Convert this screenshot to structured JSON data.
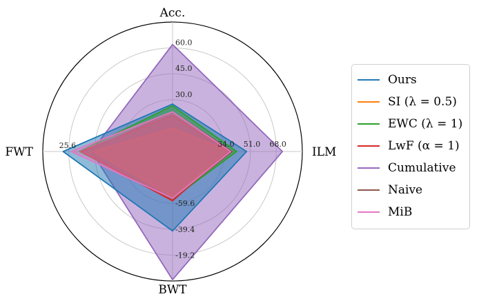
{
  "chart_data": {
    "type": "radar",
    "axes": [
      {
        "name": "Acc.",
        "min": 0,
        "max": 75,
        "ticks": [
          {
            "value": 30,
            "label": "30.0"
          },
          {
            "value": 45,
            "label": "45.0"
          },
          {
            "value": 60,
            "label": "60.0"
          }
        ]
      },
      {
        "name": "ILM",
        "min": 0,
        "max": 85,
        "ticks": [
          {
            "value": 34,
            "label": "34.0"
          },
          {
            "value": 51,
            "label": "51.0"
          },
          {
            "value": 68,
            "label": "68.0"
          }
        ]
      },
      {
        "name": "BWT",
        "min": -100,
        "max": 1,
        "ticks": [
          {
            "value": -59.6,
            "label": "-59.6"
          },
          {
            "value": -39.4,
            "label": "-39.4"
          },
          {
            "value": -19.2,
            "label": "-19.2"
          }
        ]
      },
      {
        "name": "FWT",
        "min": 0,
        "max": 32,
        "ticks": [
          {
            "value": 25.6,
            "label": "25.6"
          }
        ]
      }
    ],
    "series": [
      {
        "name": "Cumulative",
        "color": "#9467bd",
        "values": [
          62.0,
          72.0,
          0.0,
          20.0
        ]
      },
      {
        "name": "Ours",
        "color": "#1f77b4",
        "values": [
          27.5,
          48.5,
          -38.0,
          27.0
        ]
      },
      {
        "name": "EWC (λ = 1)",
        "color": "#2ca02c",
        "values": [
          26.5,
          42.0,
          -63.0,
          23.0
        ]
      },
      {
        "name": "SI (λ = 0.5)",
        "color": "#ff7f0e",
        "values": [
          13.5,
          37.0,
          -65.0,
          19.5
        ]
      },
      {
        "name": "LwF (α = 1)",
        "color": "#d62728",
        "values": [
          21.0,
          37.0,
          -61.5,
          22.5
        ]
      },
      {
        "name": "Naive",
        "color": "#8c564b",
        "values": [
          23.0,
          39.0,
          -63.0,
          21.5
        ]
      },
      {
        "name": "MiB",
        "color": "#e377c2",
        "values": [
          23.0,
          38.0,
          -63.5,
          25.0
        ]
      }
    ],
    "legend": {
      "placement": "right",
      "items": [
        {
          "label": "Ours",
          "color": "#1f77b4"
        },
        {
          "label": "SI (λ = 0.5)",
          "color": "#ff7f0e"
        },
        {
          "label": "EWC (λ = 1)",
          "color": "#2ca02c"
        },
        {
          "label": "LwF (α = 1)",
          "color": "#d62728"
        },
        {
          "label": "Cumulative",
          "color": "#9467bd"
        },
        {
          "label": "Naive",
          "color": "#8c564b"
        },
        {
          "label": "MiB",
          "color": "#e377c2"
        }
      ]
    },
    "grid": true
  }
}
